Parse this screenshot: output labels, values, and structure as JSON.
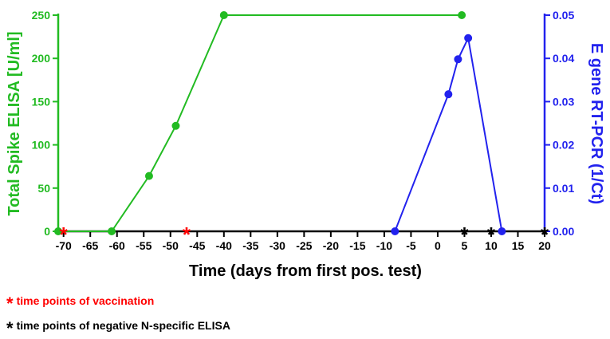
{
  "chart_data": {
    "type": "line",
    "xlabel": "Time (days from first pos. test)",
    "ylabel_left": "Total Spike ELISA [U/ml]",
    "ylabel_right": "E gene RT-PCR (1/Ct)",
    "x_ticks": [
      -70,
      -65,
      -60,
      -55,
      -50,
      -45,
      -40,
      -35,
      -30,
      -25,
      -20,
      -15,
      -10,
      -5,
      0,
      5,
      10,
      15,
      20
    ],
    "xlim": [
      -71,
      20
    ],
    "ylim_left": [
      0,
      250
    ],
    "y_ticks_left": [
      0,
      50,
      100,
      150,
      200,
      250
    ],
    "ylim_right": [
      0,
      0.05
    ],
    "y_ticks_right": [
      "0.00",
      "0.01",
      "0.02",
      "0.03",
      "0.04",
      "0.05"
    ],
    "series": [
      {
        "axis": "left",
        "color": "#22bb22",
        "x": [
          -71,
          -61,
          -54,
          -49,
          -40,
          4.5
        ],
        "y": [
          0,
          0,
          64,
          122,
          250,
          250
        ]
      },
      {
        "axis": "right",
        "color": "#2222ee",
        "x": [
          -8,
          2,
          3.8,
          5.7,
          12
        ],
        "y": [
          0,
          0.0317,
          0.0398,
          0.0447,
          0
        ]
      }
    ],
    "markers": [
      {
        "symbol": "*",
        "color": "#ff0000",
        "x": [
          -70,
          -47
        ]
      },
      {
        "symbol": "*",
        "color": "#000000",
        "x": [
          5,
          10,
          20
        ]
      }
    ],
    "legend": [
      {
        "symbol": "*",
        "color": "#ff0000",
        "label": "time points of vaccination"
      },
      {
        "symbol": "*",
        "color": "#000000",
        "label": "time points of negative N-specific ELISA"
      }
    ],
    "grid": false
  }
}
